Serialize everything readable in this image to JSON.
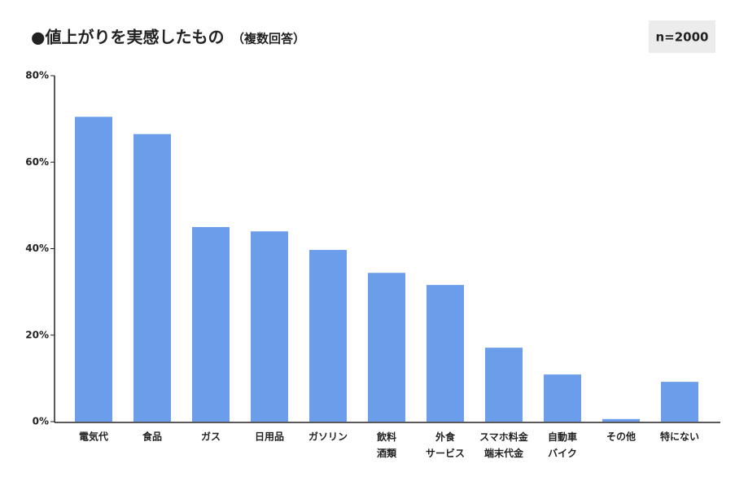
{
  "chart_data": {
    "type": "bar",
    "title": "●値上がりを実感したもの",
    "subtitle": "（複数回答）",
    "annotation": "n=2000",
    "categories": [
      "電気代",
      "食品",
      "ガス",
      "日用品",
      "ガソリン",
      "飲料\n酒類",
      "外食\nサービス",
      "スマホ料金\n端末代金",
      "自動車\nバイク",
      "その他",
      "特にない"
    ],
    "values": [
      70.5,
      66.5,
      45.0,
      44.0,
      39.7,
      34.4,
      31.6,
      17.1,
      10.9,
      0.6,
      9.2
    ],
    "color": "#6b9dea",
    "ylim": [
      0,
      80
    ],
    "yticks": [
      {
        "value": 0,
        "label": "0%"
      },
      {
        "value": 20,
        "label": "20%"
      },
      {
        "value": 40,
        "label": "40%"
      },
      {
        "value": 60,
        "label": "60%"
      },
      {
        "value": 80,
        "label": "80%"
      }
    ],
    "grid": false
  }
}
